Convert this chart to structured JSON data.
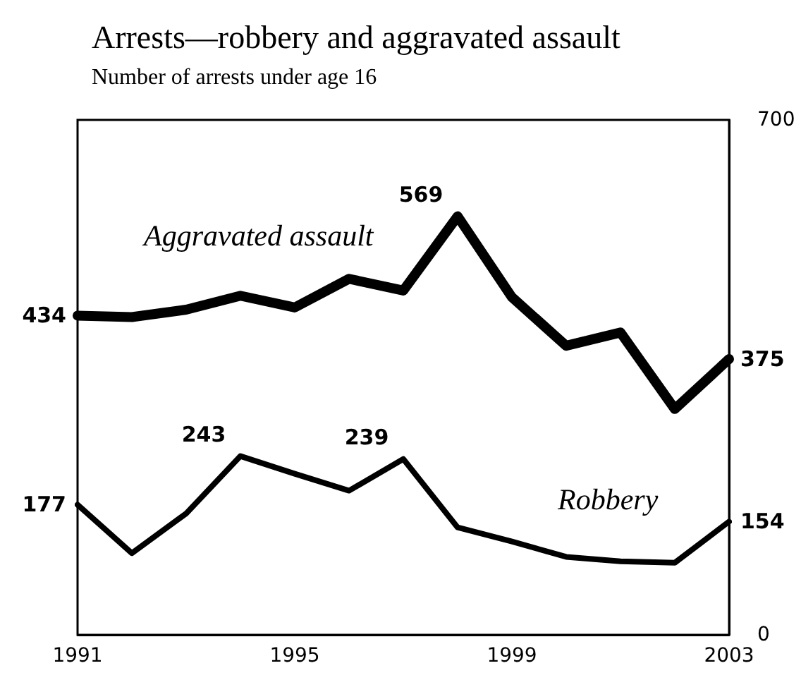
{
  "chart_data": {
    "type": "line",
    "title": "Arrests—robbery and aggravated assault",
    "subtitle": "Number of arrests under age 16",
    "x": [
      1991,
      1992,
      1993,
      1994,
      1995,
      1996,
      1997,
      1998,
      1999,
      2000,
      2001,
      2002,
      2003
    ],
    "xlim": [
      1991,
      2003
    ],
    "xticks": [
      1991,
      1995,
      1999,
      2003
    ],
    "y2lim": [
      0,
      700
    ],
    "y2ticks": [
      0,
      700
    ],
    "series": [
      {
        "name": "Aggravated assault",
        "color": "#000000",
        "axis": "y2",
        "values": [
          434,
          432,
          442,
          461,
          445,
          484,
          468,
          569,
          459,
          393,
          411,
          307,
          375
        ],
        "value_labels": [
          "434",
          null,
          null,
          null,
          null,
          null,
          null,
          "569",
          null,
          null,
          null,
          null,
          "375"
        ]
      },
      {
        "name": "Robbery",
        "color": "#000000",
        "axis": "y2",
        "values": [
          177,
          111,
          165,
          243,
          219,
          196,
          239,
          146,
          127,
          106,
          100,
          98,
          154
        ],
        "value_labels": [
          "177",
          null,
          null,
          "243",
          null,
          null,
          "239",
          null,
          null,
          null,
          null,
          null,
          "154"
        ]
      }
    ]
  }
}
